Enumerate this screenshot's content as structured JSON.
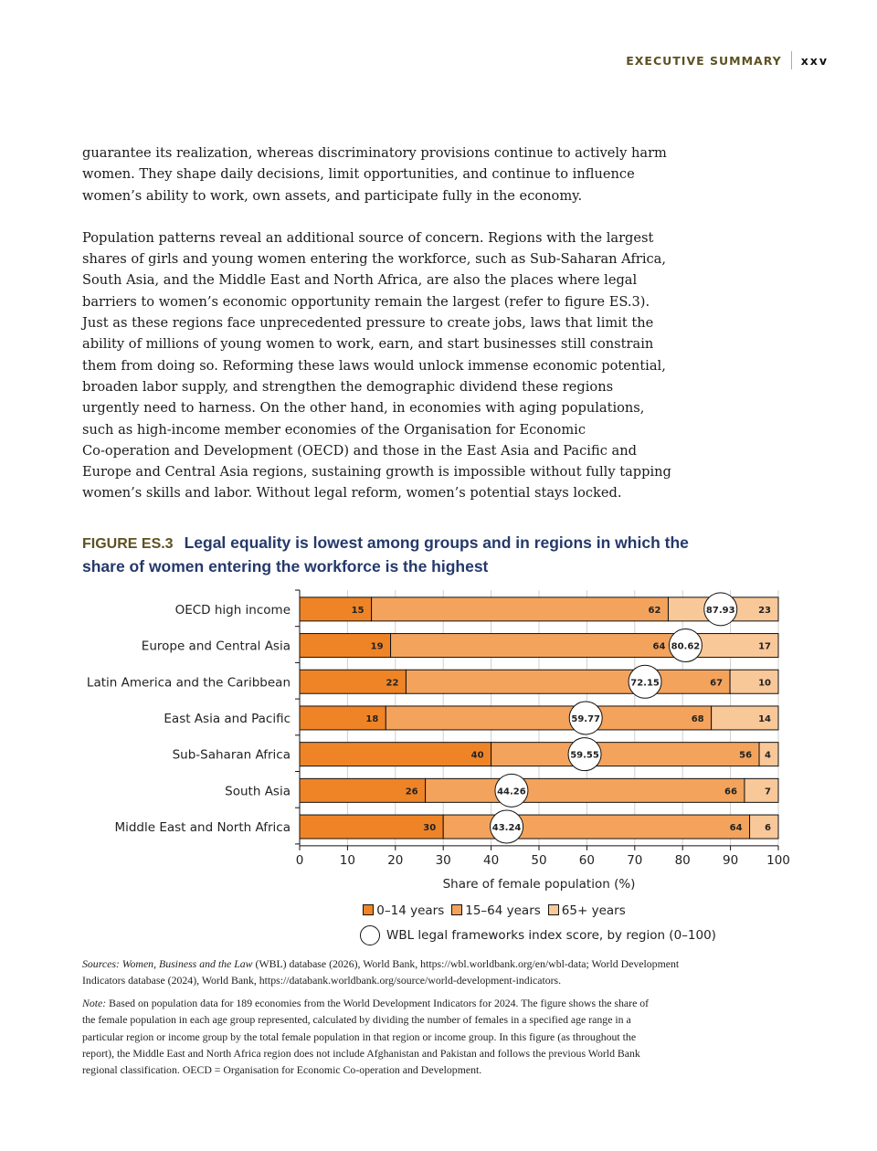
{
  "header": {
    "section": "EXECUTIVE SUMMARY",
    "page": "xxv"
  },
  "body": {
    "paragraphs": [
      [
        "guarantee its realization, whereas discriminatory provisions continue to actively harm",
        "women. They shape daily decisions, limit opportunities, and continue to influence",
        "women’s ability to work, own assets, and participate fully in the economy."
      ],
      [
        "Population patterns reveal an additional source of concern. Regions with the largest",
        "shares of girls and young women entering the workforce, such as Sub-Saharan Africa,",
        "South Asia, and the Middle East and North Africa, are also the places where legal",
        "barriers to women’s economic opportunity remain the largest (refer to figure ES.3).",
        "Just as these regions face unprecedented pressure to create jobs, laws that limit the",
        "ability of millions of young women to work, earn, and start businesses still constrain",
        "them from doing so. Reforming these laws would unlock immense economic potential,",
        "broaden labor supply, and strengthen the demographic dividend these regions",
        "urgently need to harness. On the other hand, in economies with aging populations,",
        "such as high-income member economies of the Organisation for Economic",
        "Co-operation and Development (OECD) and those in the East Asia and Pacific and",
        "Europe and Central Asia regions, sustaining growth is impossible without fully tapping",
        "women’s skills and labor. Without legal reform, women’s potential stays locked."
      ]
    ]
  },
  "figure": {
    "label": "FIGURE ES.3",
    "title_lines": [
      "Legal equality is lowest among groups and in regions in which the",
      "share of women entering the workforce is the highest"
    ]
  },
  "chart_data": {
    "type": "bar",
    "orientation": "horizontal-stacked",
    "categories": [
      "OECD high income",
      "Europe and Central Asia",
      "Latin America and the Caribbean",
      "East Asia and Pacific",
      "Sub-Saharan Africa",
      "South Asia",
      "Middle East and North Africa"
    ],
    "series": [
      {
        "name": "0–14 years",
        "color": "#ef8427",
        "values": [
          15,
          19,
          22,
          18,
          40,
          26,
          30
        ]
      },
      {
        "name": "15–64 years",
        "color": "#f4a35c",
        "values": [
          62,
          64,
          67,
          68,
          56,
          66,
          64
        ]
      },
      {
        "name": "65+ years",
        "color": "#f9c899",
        "values": [
          23,
          17,
          10,
          14,
          4,
          7,
          6
        ]
      }
    ],
    "scores": {
      "name": "WBL legal frameworks index score, by region (0–100)",
      "values": [
        "87.93",
        "80.62",
        "72.15",
        "59.77",
        "59.55",
        "44.26",
        "43.24"
      ]
    },
    "xlabel": "Share of female population (%)",
    "xlim": [
      0,
      100
    ],
    "xticks": [
      "0",
      "10",
      "20",
      "30",
      "40",
      "50",
      "60",
      "70",
      "80",
      "90",
      "100"
    ],
    "grid": true,
    "legend_position": "bottom"
  },
  "sources": {
    "lines": [
      "<i>Sources: Women, Business and the Law</i> (WBL) database (2026), World Bank, https://wbl.worldbank.org/en/wbl-data; World Development",
      "Indicators database (2024), World Bank, https://databank.worldbank.org/source/world-development-indicators."
    ]
  },
  "note": {
    "lines": [
      "<i>Note:</i> Based on population data for 189 economies from the World Development Indicators for 2024. The figure shows the share of",
      "the female population in each age group represented, calculated by dividing the number of females in a specified age range in a",
      "particular region or income group by the total female population in that region or income group. In this figure (as throughout the",
      "report), the Middle East and North Africa region does not include Afghanistan and Pakistan and follows the previous World Bank",
      "regional classification. OECD = Organisation for Economic Co-operation and Development."
    ]
  }
}
